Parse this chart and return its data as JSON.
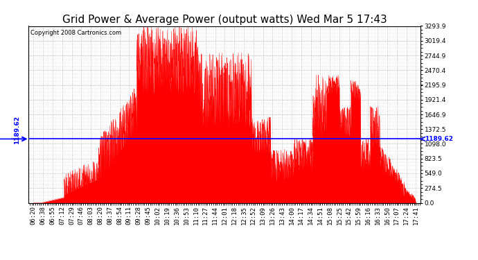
{
  "title": "Grid Power & Average Power (output watts) Wed Mar 5 17:43",
  "copyright": "Copyright 2008 Cartronics.com",
  "avg_value": 1189.62,
  "ymin": 0.0,
  "ymax": 3293.9,
  "yticks": [
    0.0,
    274.5,
    549.0,
    823.5,
    1098.0,
    1372.5,
    1646.9,
    1921.4,
    2195.9,
    2470.4,
    2744.9,
    3019.4,
    3293.9
  ],
  "background_color": "#ffffff",
  "fill_color": "#ff0000",
  "line_color": "#0000ff",
  "grid_color": "#aaaaaa",
  "title_fontsize": 11,
  "tick_fontsize": 6.5,
  "xtick_labels": [
    "06:20",
    "06:38",
    "06:55",
    "07:12",
    "07:29",
    "07:46",
    "08:03",
    "08:20",
    "08:37",
    "08:54",
    "09:11",
    "09:28",
    "09:45",
    "10:02",
    "10:19",
    "10:36",
    "10:53",
    "11:10",
    "11:27",
    "11:44",
    "12:01",
    "12:18",
    "12:35",
    "12:52",
    "13:09",
    "13:26",
    "13:43",
    "14:00",
    "14:17",
    "14:34",
    "14:51",
    "15:08",
    "15:25",
    "15:42",
    "15:59",
    "16:16",
    "16:33",
    "16:50",
    "17:07",
    "17:24",
    "17:41"
  ]
}
